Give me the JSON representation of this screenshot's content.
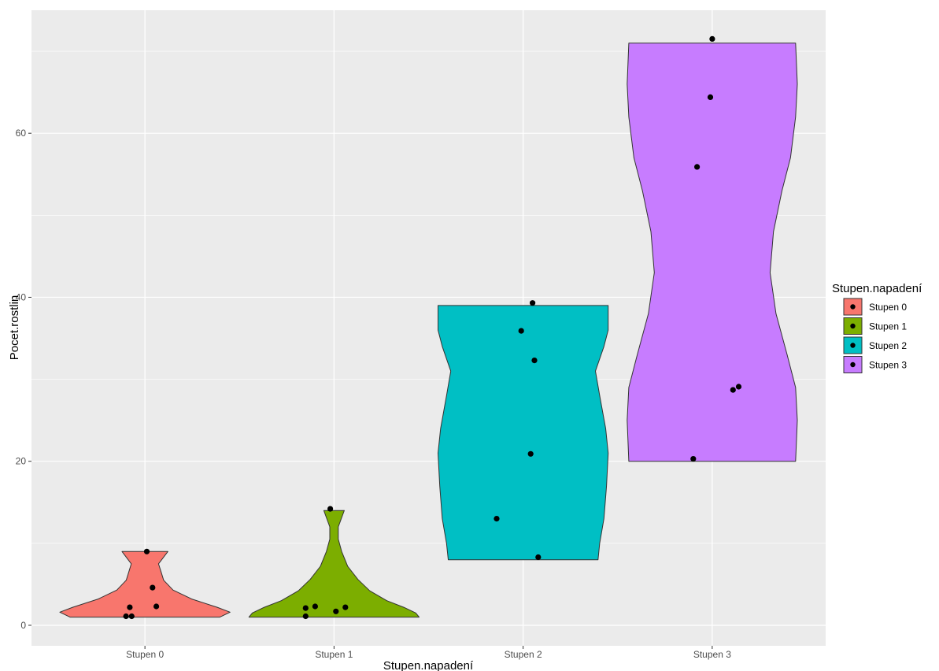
{
  "chart_data": {
    "type": "violin",
    "xlabel": "Stupen.napadení",
    "ylabel": "Pocet.rostlin",
    "categories": [
      "Stupen 0",
      "Stupen 1",
      "Stupen 2",
      "Stupen 3"
    ],
    "colors": [
      "#F8766D",
      "#7CAE00",
      "#00BFC4",
      "#C77CFF"
    ],
    "ylim": [
      -2.5,
      75
    ],
    "yticks": [
      0,
      20,
      40,
      60
    ],
    "grid": true,
    "legend": {
      "title": "Stupen.napadení",
      "position": "right",
      "items": [
        "Stupen 0",
        "Stupen 1",
        "Stupen 2",
        "Stupen 3"
      ]
    },
    "violins": [
      {
        "category": "Stupen 0",
        "min": 1,
        "max": 9,
        "profile": [
          [
            1,
            0.88
          ],
          [
            1.6,
            1.0
          ],
          [
            2.2,
            0.85
          ],
          [
            3.2,
            0.55
          ],
          [
            4.3,
            0.33
          ],
          [
            5.5,
            0.22
          ],
          [
            6.5,
            0.19
          ],
          [
            7.5,
            0.16
          ],
          [
            9,
            0.27
          ]
        ]
      },
      {
        "category": "Stupen 1",
        "min": 1,
        "max": 14,
        "profile": [
          [
            1,
            1.0
          ],
          [
            1.5,
            0.96
          ],
          [
            2.2,
            0.82
          ],
          [
            3.0,
            0.62
          ],
          [
            4.2,
            0.42
          ],
          [
            5.6,
            0.28
          ],
          [
            7.2,
            0.16
          ],
          [
            9.0,
            0.09
          ],
          [
            10.5,
            0.05
          ],
          [
            12.0,
            0.05
          ],
          [
            14,
            0.12
          ]
        ]
      },
      {
        "category": "Stupen 2",
        "min": 8,
        "max": 39,
        "profile": [
          [
            8,
            0.88
          ],
          [
            10,
            0.9
          ],
          [
            13,
            0.95
          ],
          [
            17,
            0.98
          ],
          [
            21,
            1.0
          ],
          [
            24,
            0.97
          ],
          [
            28,
            0.9
          ],
          [
            31,
            0.85
          ],
          [
            34,
            0.95
          ],
          [
            36,
            1.0
          ],
          [
            39,
            1.0
          ]
        ]
      },
      {
        "category": "Stupen 3",
        "min": 20,
        "max": 71,
        "profile": [
          [
            20,
            0.98
          ],
          [
            25,
            1.0
          ],
          [
            29,
            0.98
          ],
          [
            33,
            0.88
          ],
          [
            38,
            0.75
          ],
          [
            43,
            0.68
          ],
          [
            48,
            0.72
          ],
          [
            53,
            0.82
          ],
          [
            57,
            0.92
          ],
          [
            62,
            0.98
          ],
          [
            66,
            1.0
          ],
          [
            71,
            0.98
          ]
        ]
      }
    ],
    "points": [
      {
        "category": "Stupen 0",
        "y": 9.0,
        "jitter": 0.01
      },
      {
        "category": "Stupen 0",
        "y": 4.6,
        "jitter": 0.04
      },
      {
        "category": "Stupen 0",
        "y": 2.3,
        "jitter": 0.06
      },
      {
        "category": "Stupen 0",
        "y": 2.2,
        "jitter": -0.08
      },
      {
        "category": "Stupen 0",
        "y": 1.1,
        "jitter": -0.1
      },
      {
        "category": "Stupen 0",
        "y": 1.1,
        "jitter": -0.07
      },
      {
        "category": "Stupen 1",
        "y": 14.2,
        "jitter": -0.02
      },
      {
        "category": "Stupen 1",
        "y": 2.3,
        "jitter": -0.1
      },
      {
        "category": "Stupen 1",
        "y": 2.2,
        "jitter": 0.06
      },
      {
        "category": "Stupen 1",
        "y": 2.1,
        "jitter": -0.15
      },
      {
        "category": "Stupen 1",
        "y": 1.7,
        "jitter": 0.01
      },
      {
        "category": "Stupen 1",
        "y": 1.1,
        "jitter": -0.15
      },
      {
        "category": "Stupen 2",
        "y": 39.3,
        "jitter": 0.05
      },
      {
        "category": "Stupen 2",
        "y": 35.9,
        "jitter": -0.01
      },
      {
        "category": "Stupen 2",
        "y": 32.3,
        "jitter": 0.06
      },
      {
        "category": "Stupen 2",
        "y": 20.9,
        "jitter": 0.04
      },
      {
        "category": "Stupen 2",
        "y": 13.0,
        "jitter": -0.14
      },
      {
        "category": "Stupen 2",
        "y": 8.3,
        "jitter": 0.08
      },
      {
        "category": "Stupen 3",
        "y": 71.5,
        "jitter": 0.0
      },
      {
        "category": "Stupen 3",
        "y": 64.4,
        "jitter": -0.01
      },
      {
        "category": "Stupen 3",
        "y": 55.9,
        "jitter": -0.08
      },
      {
        "category": "Stupen 3",
        "y": 29.1,
        "jitter": 0.14
      },
      {
        "category": "Stupen 3",
        "y": 28.7,
        "jitter": 0.11
      },
      {
        "category": "Stupen 3",
        "y": 20.3,
        "jitter": -0.1
      }
    ]
  }
}
